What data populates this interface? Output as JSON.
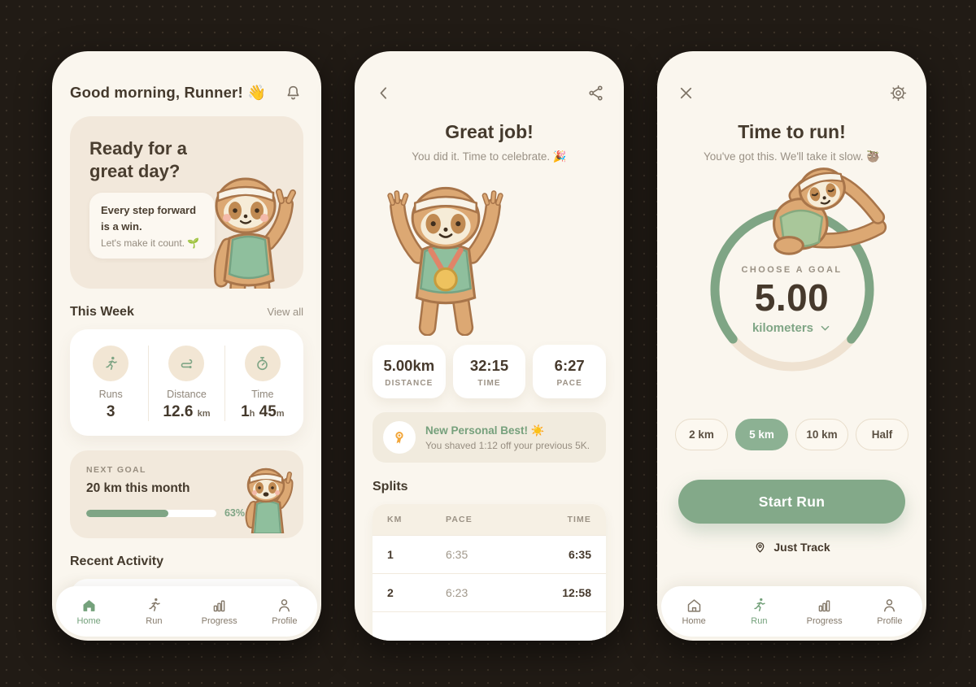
{
  "colors": {
    "accent_green": "#7fa585",
    "chip_selected_green": "#8cb193",
    "button_green": "#83a989",
    "best_orange": "#f2a63a",
    "text_dark": "#473c30",
    "text_muted": "#978e81"
  },
  "nav": {
    "items": [
      {
        "label": "Home",
        "icon": "home-icon"
      },
      {
        "label": "Run",
        "icon": "run-icon"
      },
      {
        "label": "Progress",
        "icon": "progress-icon"
      },
      {
        "label": "Profile",
        "icon": "profile-icon"
      }
    ]
  },
  "home_screen": {
    "greeting": "Good morning, Runner! 👋",
    "hero": {
      "title": "Ready for a great day?",
      "bubble_bold_1": "Every step forward",
      "bubble_bold_2": "is a win.",
      "bubble_caption": "Let's make it count. 🌱"
    },
    "this_week": {
      "heading": "This Week",
      "view_all": "View all",
      "stats": [
        {
          "icon": "runner-icon",
          "label": "Runs",
          "value": "3"
        },
        {
          "icon": "route-icon",
          "label": "Distance",
          "value": "12.6",
          "unit": "km"
        },
        {
          "icon": "stopwatch-icon",
          "label": "Time",
          "value": "1",
          "unit": "h",
          "value2": "45",
          "unit2": "m"
        }
      ]
    },
    "next_goal": {
      "label": "NEXT GOAL",
      "title": "20 km this month",
      "progress_percent": 63,
      "progress_label": "63%"
    },
    "recent_activity_heading": "Recent Activity"
  },
  "summary_screen": {
    "title": "Great job!",
    "subtitle": "You did it. Time to celebrate. 🎉",
    "stats": [
      {
        "value": "5.00km",
        "label": "DISTANCE"
      },
      {
        "value": "32:15",
        "label": "TIME"
      },
      {
        "value": "6:27",
        "label": "PACE"
      }
    ],
    "personal_best": {
      "title": "New Personal Best! ☀️",
      "subtitle": "You shaved 1:12 off your previous 5K."
    },
    "splits": {
      "heading": "Splits",
      "columns": [
        "KM",
        "PACE",
        "TIME"
      ],
      "rows": [
        {
          "km": "1",
          "pace": "6:35",
          "time": "6:35"
        },
        {
          "km": "2",
          "pace": "6:23",
          "time": "12:58"
        }
      ]
    }
  },
  "run_screen": {
    "title": "Time to run!",
    "subtitle": "You've got this. We'll take it slow. 🦥",
    "goal_picker": {
      "label": "CHOOSE A GOAL",
      "value": "5.00",
      "unit": "kilometers"
    },
    "distance_chips": [
      {
        "label": "2 km",
        "selected": false
      },
      {
        "label": "5 km",
        "selected": true
      },
      {
        "label": "10 km",
        "selected": false
      },
      {
        "label": "Half",
        "selected": false
      }
    ],
    "start_button_label": "Start Run",
    "just_track_label": "Just Track"
  }
}
